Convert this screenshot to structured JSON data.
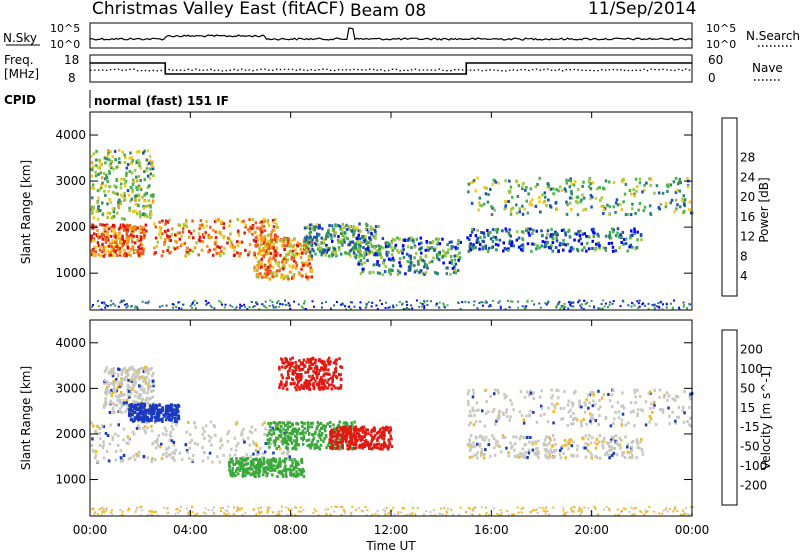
{
  "header": {
    "title": "Christmas Valley East (fitACF)",
    "beam": "Beam 08",
    "date": "11/Sep/2014"
  },
  "status_panels": {
    "nsky_label": "N.Sky",
    "nsky_ticks": [
      "10^5",
      "10^0"
    ],
    "nsearch_label": "N.Search",
    "freq_label_1": "Freq.",
    "freq_label_2": "[MHz]",
    "freq_ticks": [
      "18",
      "8"
    ],
    "nave_ticks": [
      "60",
      "0"
    ],
    "nave_label": "Nave",
    "cpid_label": "CPID",
    "cpid_text": "normal (fast) 151 IF",
    "freq_segments": [
      {
        "start": 0.0,
        "end": 3.0,
        "level": "high"
      },
      {
        "start": 3.0,
        "end": 15.0,
        "level": "low"
      },
      {
        "start": 15.0,
        "end": 24.0,
        "level": "high"
      }
    ]
  },
  "chart_data": [
    {
      "type": "heatmap",
      "name": "power",
      "ylabel": "Slant Range [km]",
      "ylim": [
        200,
        4500
      ],
      "y_ticks": [
        1000,
        2000,
        3000,
        4000
      ],
      "xlim": [
        0,
        24
      ],
      "colorbar_label": "Power [dB]",
      "colorbar_ticks": [
        4,
        8,
        12,
        16,
        20,
        24,
        28
      ],
      "colorbar_colors": [
        "#0000ff",
        "#1c50b0",
        "#2e8a66",
        "#46b24a",
        "#9ac83a",
        "#f2c81e",
        "#f59a1a",
        "#ef5a1a",
        "#e01010"
      ],
      "regions": [
        {
          "x": [
            0,
            2.2
          ],
          "y": [
            1400,
            2100
          ],
          "level": 0.82
        },
        {
          "x": [
            0,
            2.5
          ],
          "y": [
            2200,
            3700
          ],
          "level": 0.45
        },
        {
          "x": [
            2.5,
            7.5
          ],
          "y": [
            1400,
            2200
          ],
          "level": 0.75
        },
        {
          "x": [
            6.5,
            8.8
          ],
          "y": [
            900,
            1800
          ],
          "level": 0.72
        },
        {
          "x": [
            8.5,
            11.5
          ],
          "y": [
            1400,
            2100
          ],
          "level": 0.35
        },
        {
          "x": [
            10.5,
            14.8
          ],
          "y": [
            1000,
            1800
          ],
          "level": 0.3
        },
        {
          "x": [
            15,
            24
          ],
          "y": [
            2300,
            3100
          ],
          "level": 0.4
        },
        {
          "x": [
            15,
            22
          ],
          "y": [
            1500,
            2000
          ],
          "level": 0.22
        }
      ]
    },
    {
      "type": "heatmap",
      "name": "velocity",
      "ylabel": "Slant Range [km]",
      "ylim": [
        200,
        4500
      ],
      "y_ticks": [
        1000,
        2000,
        3000,
        4000
      ],
      "xlim": [
        0,
        24
      ],
      "xlabel": "Time UT",
      "x_ticks": [
        "00:00",
        "04:00",
        "08:00",
        "12:00",
        "16:00",
        "20:00",
        "00:00"
      ],
      "colorbar_label": "Velocity [m s^-1]",
      "colorbar_ticks": [
        200,
        100,
        50,
        15,
        -15,
        -50,
        -100,
        -200
      ],
      "colorbar_colors": [
        "#1a3ac0",
        "#2a6ad6",
        "#2a8a3a",
        "#5cc83a",
        "#c8c8c0",
        "#f5b820",
        "#f28a1a",
        "#ef4a1a",
        "#e01010"
      ],
      "regions": [
        {
          "x": [
            0,
            8
          ],
          "y": [
            1400,
            2300
          ],
          "level": "gray"
        },
        {
          "x": [
            0.5,
            2.5
          ],
          "y": [
            2500,
            3500
          ],
          "level": "gray"
        },
        {
          "x": [
            1.5,
            3.5
          ],
          "y": [
            2300,
            2700
          ],
          "level": "blue"
        },
        {
          "x": [
            5.5,
            8.5
          ],
          "y": [
            1100,
            1500
          ],
          "level": "green"
        },
        {
          "x": [
            7,
            10.5
          ],
          "y": [
            1700,
            2300
          ],
          "level": "green"
        },
        {
          "x": [
            9.5,
            12
          ],
          "y": [
            1700,
            2200
          ],
          "level": "red"
        },
        {
          "x": [
            7.5,
            10
          ],
          "y": [
            3000,
            3700
          ],
          "level": "red"
        },
        {
          "x": [
            15,
            24
          ],
          "y": [
            2200,
            3000
          ],
          "level": "gray"
        },
        {
          "x": [
            15,
            22
          ],
          "y": [
            1500,
            2000
          ],
          "level": "gray"
        }
      ]
    }
  ]
}
